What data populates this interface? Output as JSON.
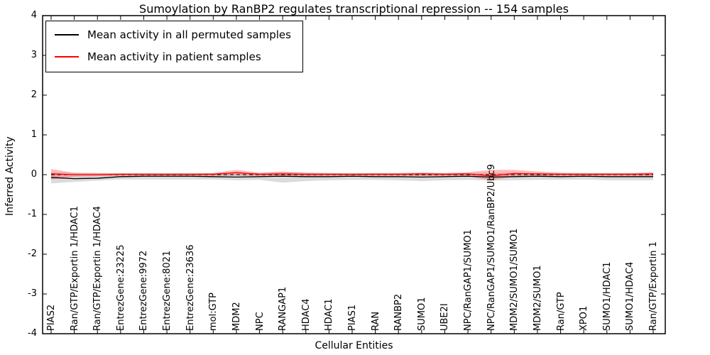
{
  "legend": {
    "items": [
      {
        "label": "Mean activity in all permuted samples",
        "color": "#000000"
      },
      {
        "label": "Mean activity in patient samples",
        "color": "#ff0000"
      }
    ]
  },
  "chart_data": {
    "type": "line",
    "title": "Sumoylation by RanBP2 regulates transcriptional repression -- 154 samples",
    "xlabel": "Cellular Entities",
    "ylabel": "Inferred Activity",
    "ylim": [
      -4,
      4
    ],
    "yticks": [
      4,
      3,
      2,
      1,
      0,
      -1,
      -2,
      -3,
      -4
    ],
    "grid": false,
    "legend_position": "upper left",
    "zero_line": {
      "style": "dashed",
      "color": "#000000",
      "y": 0
    },
    "categories": [
      "PIAS2",
      "Ran/GTP/Exportin 1/HDAC1",
      "Ran/GTP/Exportin 1/HDAC4",
      "EntrezGene:23225",
      "EntrezGene:9972",
      "EntrezGene:8021",
      "EntrezGene:23636",
      "mol:GTP",
      "MDM2",
      "NPC",
      "RANGAP1",
      "HDAC4",
      "HDAC1",
      "PIAS1",
      "RAN",
      "RANBP2",
      "SUMO1",
      "UBE2I",
      "NPC/RanGAP1/SUMO1",
      "NPC/RanGAP1/SUMO1/RanBP2/Ubc9",
      "MDM2/SUMO1/SUMO1",
      "MDM2/SUMO1",
      "Ran/GTP",
      "XPO1",
      "SUMO1/HDAC1",
      "SUMO1/HDAC4",
      "Ran/GTP/Exportin 1"
    ],
    "series": [
      {
        "name": "Mean activity in all permuted samples",
        "color": "#000000",
        "values": [
          -0.07,
          -0.1,
          -0.09,
          -0.05,
          -0.04,
          -0.04,
          -0.04,
          -0.05,
          -0.06,
          -0.05,
          -0.04,
          -0.05,
          -0.05,
          -0.04,
          -0.05,
          -0.05,
          -0.06,
          -0.05,
          -0.04,
          -0.06,
          -0.05,
          -0.04,
          -0.05,
          -0.04,
          -0.05,
          -0.05,
          -0.05
        ]
      },
      {
        "name": "Mean activity in patient samples",
        "color": "#ff0000",
        "values": [
          0.02,
          0.0,
          0.0,
          0.01,
          0.01,
          0.01,
          0.01,
          0.01,
          0.05,
          0.01,
          0.02,
          0.01,
          0.01,
          0.01,
          0.01,
          0.01,
          0.02,
          0.01,
          0.02,
          -0.03,
          0.03,
          0.02,
          0.01,
          0.01,
          0.01,
          0.01,
          0.02
        ]
      }
    ],
    "bands": [
      {
        "name": "permuted-range",
        "color": "rgba(0,0,0,0.14)",
        "upper": [
          0.06,
          0.04,
          0.04,
          0.04,
          0.04,
          0.04,
          0.04,
          0.04,
          0.04,
          0.04,
          0.06,
          0.05,
          0.04,
          0.04,
          0.04,
          0.04,
          0.05,
          0.04,
          0.04,
          0.05,
          0.05,
          0.04,
          0.04,
          0.04,
          0.04,
          0.04,
          0.04
        ],
        "lower": [
          -0.22,
          -0.18,
          -0.15,
          -0.12,
          -0.12,
          -0.12,
          -0.12,
          -0.12,
          -0.14,
          -0.13,
          -0.2,
          -0.16,
          -0.14,
          -0.13,
          -0.13,
          -0.14,
          -0.16,
          -0.14,
          -0.13,
          -0.15,
          -0.14,
          -0.13,
          -0.13,
          -0.12,
          -0.14,
          -0.14,
          -0.14
        ]
      },
      {
        "name": "patient-range",
        "color": "rgba(255,60,60,0.35)",
        "upper": [
          0.14,
          0.05,
          0.04,
          0.03,
          0.03,
          0.03,
          0.03,
          0.04,
          0.12,
          0.05,
          0.08,
          0.05,
          0.04,
          0.03,
          0.04,
          0.04,
          0.05,
          0.04,
          0.06,
          0.12,
          0.12,
          0.08,
          0.05,
          0.04,
          0.04,
          0.04,
          0.06
        ],
        "lower": [
          -0.12,
          -0.05,
          -0.04,
          -0.03,
          -0.03,
          -0.03,
          -0.03,
          -0.03,
          -0.02,
          -0.03,
          -0.04,
          -0.04,
          -0.03,
          -0.03,
          -0.03,
          -0.03,
          -0.04,
          -0.03,
          -0.04,
          -0.14,
          -0.05,
          -0.04,
          -0.03,
          -0.03,
          -0.03,
          -0.03,
          -0.04
        ]
      }
    ]
  }
}
